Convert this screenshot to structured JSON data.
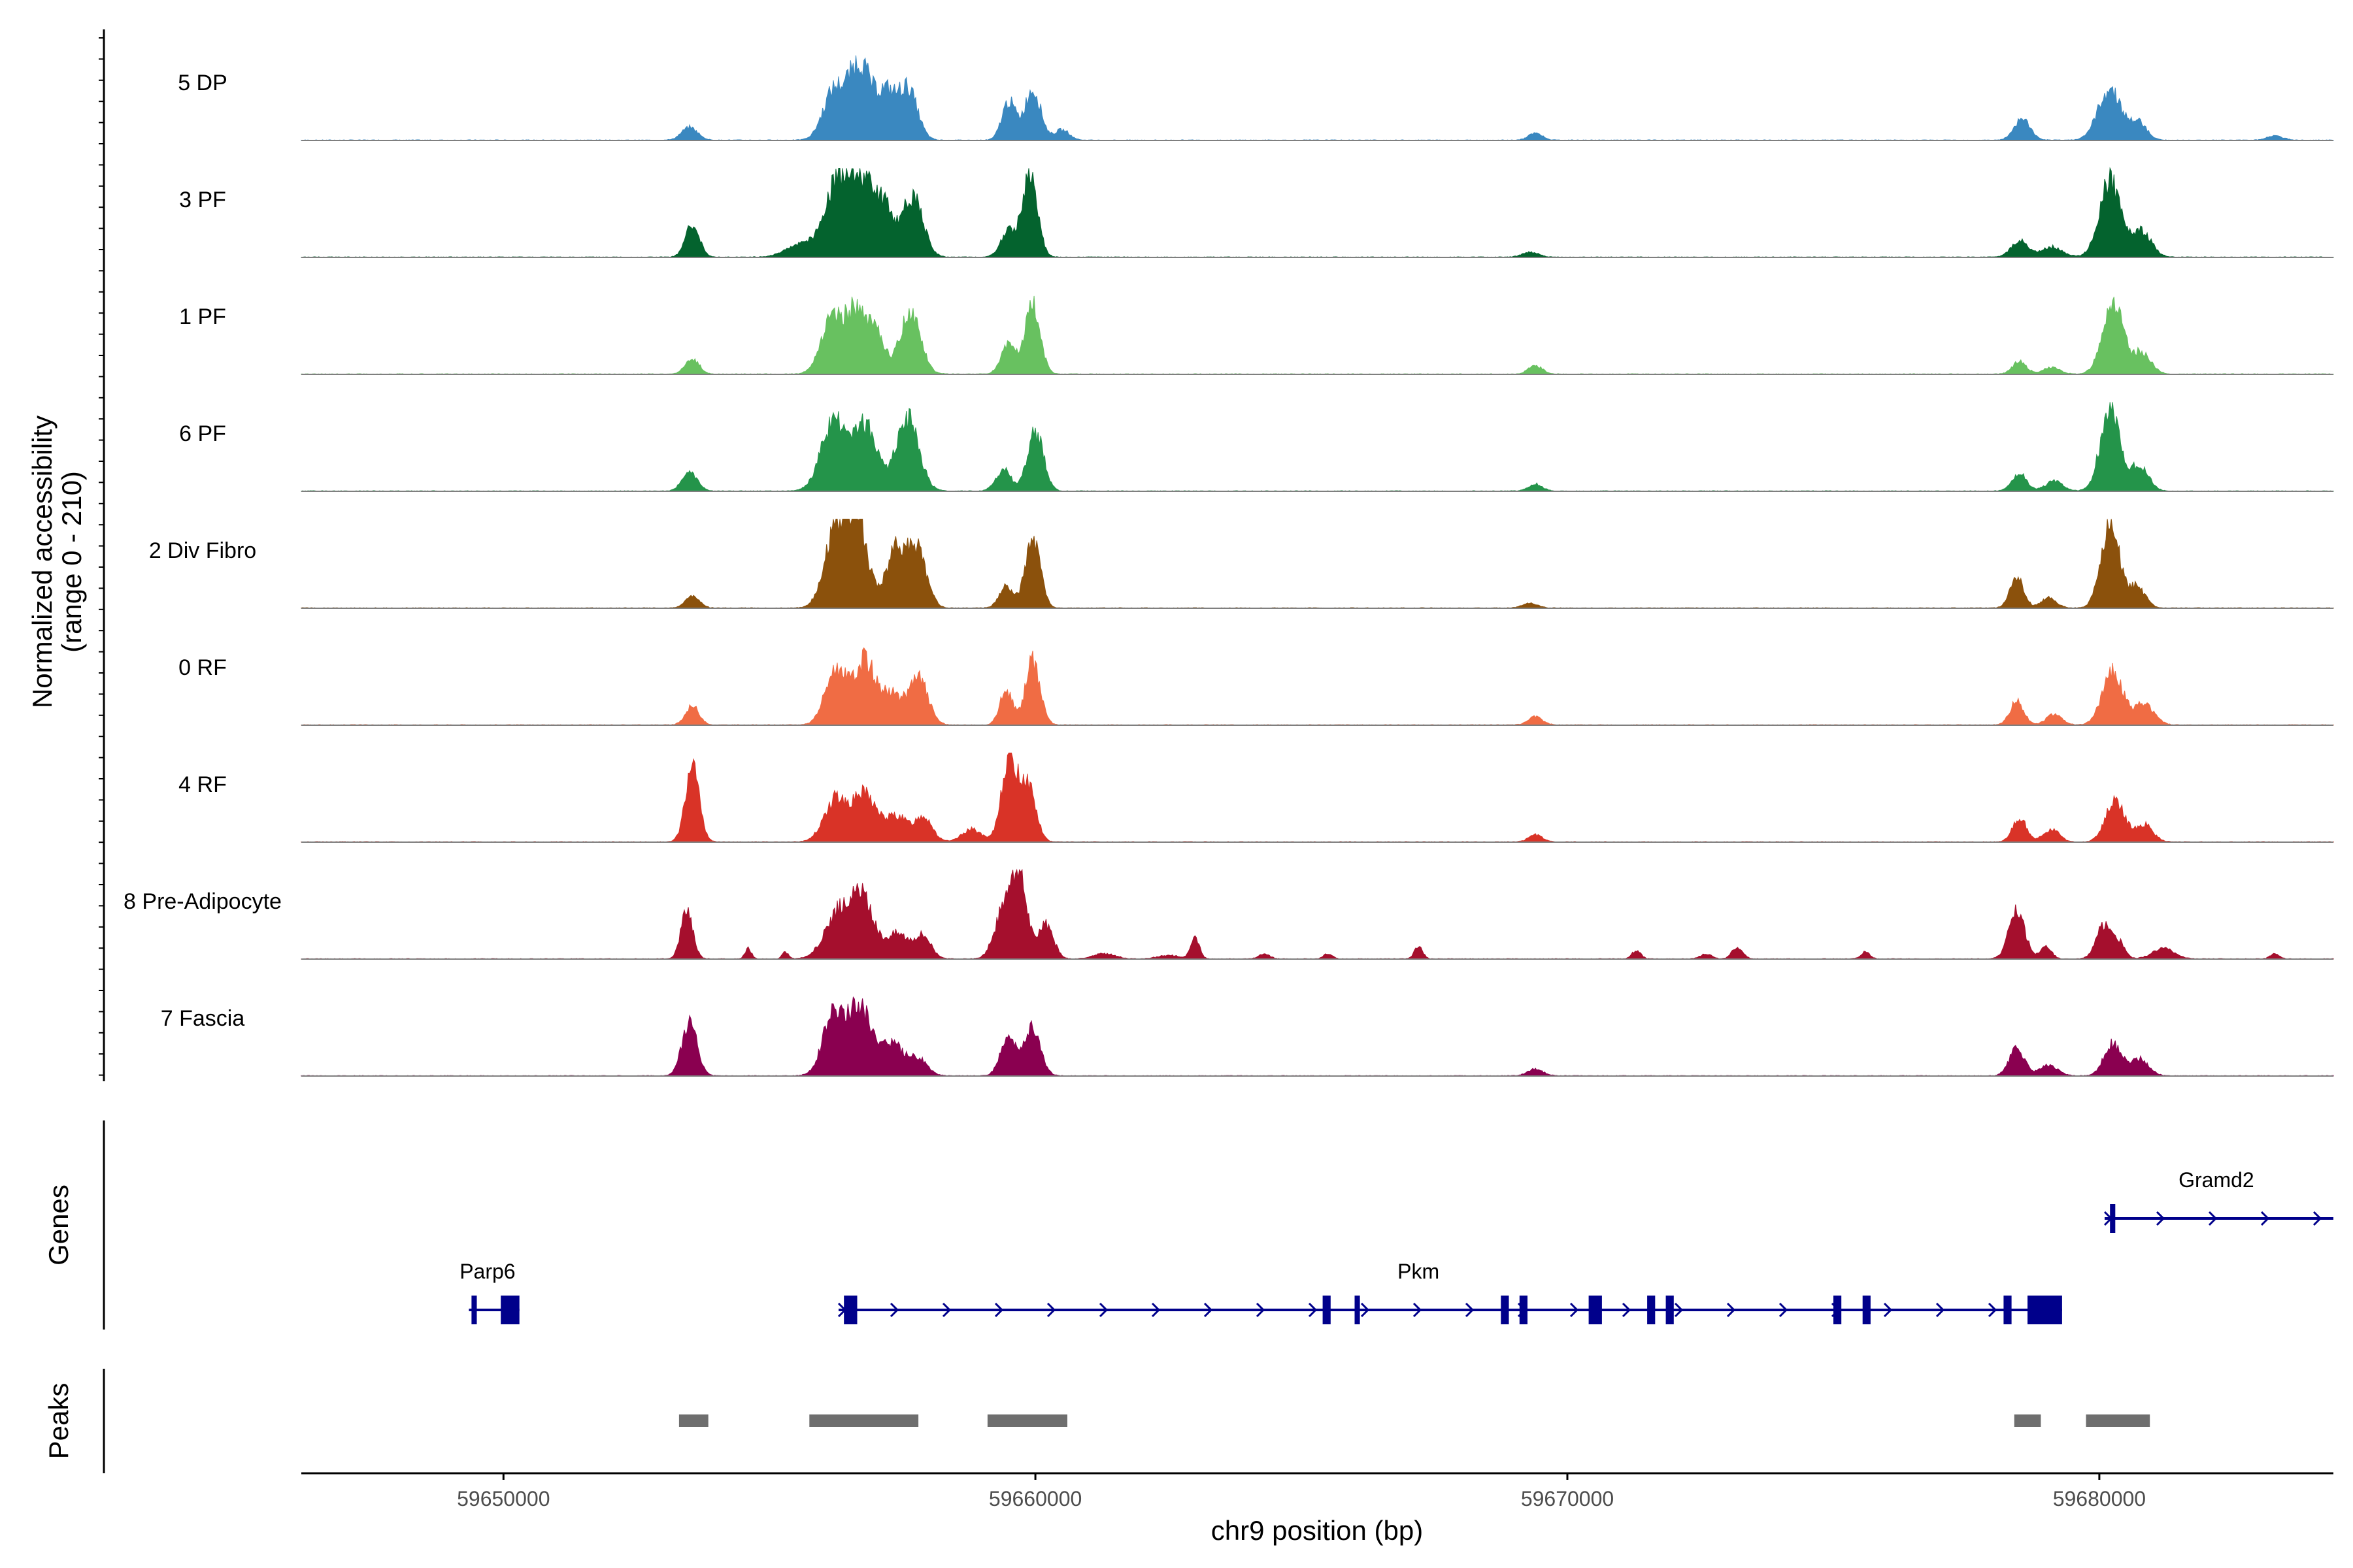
{
  "chart_data": {
    "type": "area",
    "title": "",
    "chromosome": "chr9",
    "xlabel": "chr9 position (bp)",
    "ylabel_line1": "Normalized accessibility",
    "ylabel_line2": "(range 0 - 210)",
    "xlim": [
      59646200,
      59684400
    ],
    "xticks": [
      {
        "value": 59650000,
        "label": "59650000"
      },
      {
        "value": 59660000,
        "label": "59660000"
      },
      {
        "value": 59670000,
        "label": "59670000"
      },
      {
        "value": 59680000,
        "label": "59680000"
      }
    ],
    "y_range": [
      0,
      210
    ],
    "tracks": [
      {
        "name": "5 DP",
        "color": "#3a88c0",
        "peaks": [
          [
            59653500,
            0.15,
            150
          ],
          [
            59656200,
            0.55,
            200
          ],
          [
            59656700,
            0.9,
            220
          ],
          [
            59657200,
            0.5,
            170
          ],
          [
            59657600,
            0.6,
            180
          ],
          [
            59659500,
            0.45,
            130
          ],
          [
            59659950,
            0.6,
            150
          ],
          [
            59660500,
            0.12,
            140
          ],
          [
            59669400,
            0.08,
            130
          ],
          [
            59678550,
            0.25,
            150
          ],
          [
            59680200,
            0.6,
            220
          ],
          [
            59680750,
            0.2,
            150
          ],
          [
            59683300,
            0.05,
            150
          ]
        ]
      },
      {
        "name": "3 PF",
        "color": "#04632e",
        "peaks": [
          [
            59653550,
            0.38,
            130
          ],
          [
            59655600,
            0.15,
            280
          ],
          [
            59656300,
            0.9,
            250
          ],
          [
            59656800,
            0.8,
            220
          ],
          [
            59657200,
            0.45,
            180
          ],
          [
            59657700,
            0.7,
            190
          ],
          [
            59659500,
            0.3,
            150
          ],
          [
            59659900,
            0.95,
            140
          ],
          [
            59669300,
            0.06,
            150
          ],
          [
            59678500,
            0.2,
            150
          ],
          [
            59679100,
            0.12,
            200
          ],
          [
            59680200,
            0.9,
            200
          ],
          [
            59680800,
            0.3,
            180
          ]
        ]
      },
      {
        "name": "1 PF",
        "color": "#68c160",
        "peaks": [
          [
            59653550,
            0.18,
            130
          ],
          [
            59656150,
            0.6,
            200
          ],
          [
            59656600,
            0.7,
            200
          ],
          [
            59657000,
            0.45,
            170
          ],
          [
            59657650,
            0.75,
            190
          ],
          [
            59659500,
            0.35,
            140
          ],
          [
            59659950,
            0.8,
            140
          ],
          [
            59669400,
            0.1,
            130
          ],
          [
            59678500,
            0.15,
            130
          ],
          [
            59679100,
            0.08,
            150
          ],
          [
            59680250,
            0.85,
            190
          ],
          [
            59680800,
            0.25,
            170
          ]
        ]
      },
      {
        "name": "6 PF",
        "color": "#24944a",
        "peaks": [
          [
            59653500,
            0.22,
            140
          ],
          [
            59656200,
            0.8,
            230
          ],
          [
            59656800,
            0.75,
            230
          ],
          [
            59657600,
            0.85,
            210
          ],
          [
            59659400,
            0.25,
            140
          ],
          [
            59660000,
            0.7,
            150
          ],
          [
            59669400,
            0.08,
            130
          ],
          [
            59678500,
            0.2,
            140
          ],
          [
            59679150,
            0.12,
            160
          ],
          [
            59680200,
            0.95,
            180
          ],
          [
            59680750,
            0.3,
            170
          ]
        ]
      },
      {
        "name": "2 Div Fibro",
        "color": "#8b510c",
        "peaks": [
          [
            59653550,
            0.15,
            130
          ],
          [
            59656250,
            0.9,
            210
          ],
          [
            59656650,
            0.95,
            200
          ],
          [
            59657400,
            0.7,
            200
          ],
          [
            59657800,
            0.6,
            170
          ],
          [
            59659450,
            0.25,
            130
          ],
          [
            59659950,
            0.8,
            140
          ],
          [
            59669300,
            0.06,
            140
          ],
          [
            59678450,
            0.35,
            130
          ],
          [
            59679050,
            0.12,
            140
          ],
          [
            59680200,
            1.0,
            170
          ],
          [
            59680700,
            0.25,
            160
          ]
        ]
      },
      {
        "name": "0 RF",
        "color": "#f06c44",
        "peaks": [
          [
            59653550,
            0.22,
            130
          ],
          [
            59656250,
            0.65,
            200
          ],
          [
            59656800,
            0.75,
            200
          ],
          [
            59657300,
            0.35,
            180
          ],
          [
            59657800,
            0.55,
            180
          ],
          [
            59659450,
            0.4,
            120
          ],
          [
            59659950,
            0.75,
            140
          ],
          [
            59669400,
            0.1,
            130
          ],
          [
            59678450,
            0.28,
            130
          ],
          [
            59679150,
            0.12,
            150
          ],
          [
            59680250,
            0.65,
            190
          ],
          [
            59680850,
            0.25,
            180
          ]
        ]
      },
      {
        "name": "4 RF",
        "color": "#d93327",
        "peaks": [
          [
            59653550,
            0.85,
            130
          ],
          [
            59656250,
            0.5,
            220
          ],
          [
            59656800,
            0.55,
            220
          ],
          [
            59657400,
            0.3,
            200
          ],
          [
            59657900,
            0.3,
            160
          ],
          [
            59658800,
            0.15,
            180
          ],
          [
            59659500,
            1.0,
            140
          ],
          [
            59659850,
            0.7,
            150
          ],
          [
            59669400,
            0.08,
            130
          ],
          [
            59678500,
            0.28,
            130
          ],
          [
            59679100,
            0.15,
            150
          ],
          [
            59680300,
            0.48,
            180
          ],
          [
            59680850,
            0.2,
            160
          ]
        ]
      },
      {
        "name": "8 Pre-Adipocyte",
        "color": "#a50f2d",
        "peaks": [
          [
            59653450,
            0.6,
            110
          ],
          [
            59654600,
            0.12,
            60
          ],
          [
            59655300,
            0.08,
            60
          ],
          [
            59656300,
            0.55,
            250
          ],
          [
            59656750,
            0.65,
            200
          ],
          [
            59657400,
            0.3,
            240
          ],
          [
            59657900,
            0.25,
            150
          ],
          [
            59659400,
            0.55,
            170
          ],
          [
            59659700,
            1.0,
            140
          ],
          [
            59660200,
            0.4,
            140
          ],
          [
            59661300,
            0.06,
            200
          ],
          [
            59662500,
            0.04,
            200
          ],
          [
            59663000,
            0.25,
            80
          ],
          [
            59664300,
            0.06,
            100
          ],
          [
            59665500,
            0.06,
            80
          ],
          [
            59667200,
            0.14,
            80
          ],
          [
            59671300,
            0.1,
            80
          ],
          [
            59672600,
            0.06,
            100
          ],
          [
            59673200,
            0.14,
            100
          ],
          [
            59675600,
            0.08,
            80
          ],
          [
            59678450,
            0.55,
            150
          ],
          [
            59679000,
            0.15,
            100
          ],
          [
            59680100,
            0.4,
            150
          ],
          [
            59680400,
            0.15,
            100
          ],
          [
            59681200,
            0.12,
            200
          ],
          [
            59683300,
            0.06,
            80
          ]
        ]
      },
      {
        "name": "7 Fascia",
        "color": "#8a0050",
        "peaks": [
          [
            59653500,
            0.65,
            140
          ],
          [
            59656200,
            0.7,
            200
          ],
          [
            59656700,
            0.78,
            230
          ],
          [
            59657300,
            0.38,
            210
          ],
          [
            59657800,
            0.2,
            170
          ],
          [
            59659500,
            0.48,
            150
          ],
          [
            59659950,
            0.55,
            150
          ],
          [
            59669400,
            0.08,
            140
          ],
          [
            59678450,
            0.33,
            140
          ],
          [
            59679050,
            0.12,
            170
          ],
          [
            59680250,
            0.38,
            160
          ],
          [
            59680750,
            0.2,
            170
          ]
        ]
      }
    ],
    "genes": [
      {
        "name": "Parp6",
        "row": 2,
        "start": 59649350,
        "end": 59650300,
        "strand": "-",
        "label_pos": 59649700,
        "exons": [
          [
            59649400,
            59649500
          ],
          [
            59649950,
            59650300
          ]
        ]
      },
      {
        "name": "Pkm",
        "row": 2,
        "start": 59656300,
        "end": 59679300,
        "strand": "+",
        "label_pos": 59667200,
        "exons": [
          [
            59656400,
            59656650
          ],
          [
            59665400,
            59665550
          ],
          [
            59666000,
            59666100
          ],
          [
            59668750,
            59668900
          ],
          [
            59669100,
            59669250
          ],
          [
            59670400,
            59670650
          ],
          [
            59671500,
            59671650
          ],
          [
            59671850,
            59672000
          ],
          [
            59675000,
            59675150
          ],
          [
            59675550,
            59675700
          ],
          [
            59678200,
            59678350
          ],
          [
            59678650,
            59679300
          ]
        ]
      },
      {
        "name": "Gramd2",
        "row": 1,
        "start": 59680100,
        "end": 59684400,
        "strand": "+",
        "label_pos": 59682200,
        "exons": [
          [
            59680200,
            59680300
          ]
        ]
      }
    ],
    "peak_regions": [
      [
        59653300,
        59653850
      ],
      [
        59655750,
        59657800
      ],
      [
        59659100,
        59660600
      ],
      [
        59678400,
        59678900
      ],
      [
        59679750,
        59680950
      ]
    ],
    "panel_labels": {
      "genes": "Genes",
      "peaks": "Peaks"
    }
  }
}
